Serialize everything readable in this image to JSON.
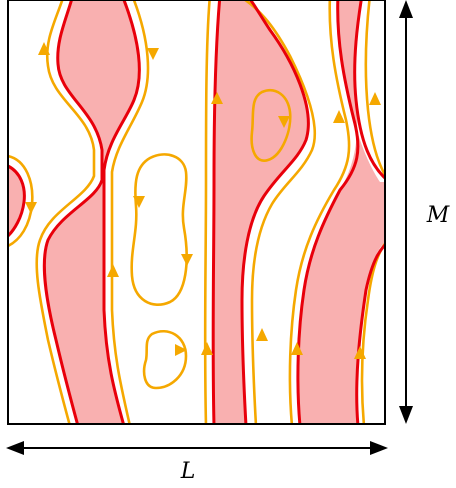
{
  "labels": {
    "width": "L",
    "height": "M"
  },
  "colors": {
    "fill": "#f9b0b0",
    "boundary": "#e8000b",
    "contour": "#f5a800",
    "frame": "#000000",
    "background": "#ffffff"
  }
}
